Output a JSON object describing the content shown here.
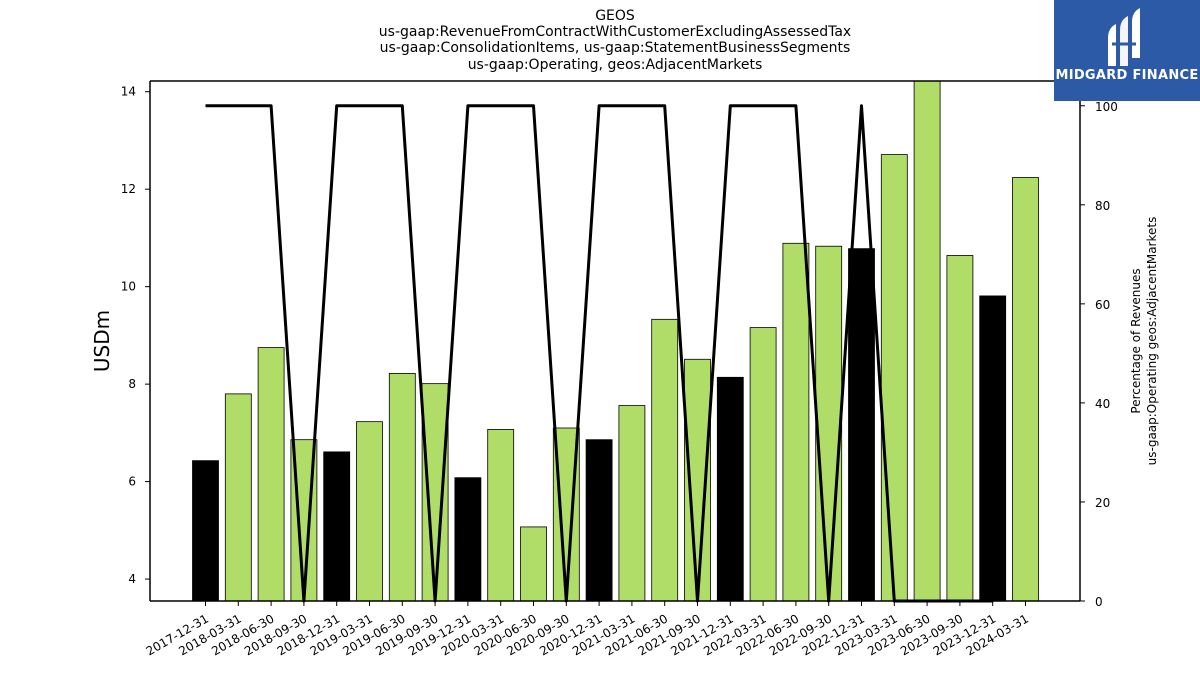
{
  "chart_data": {
    "type": "bar",
    "title_lines": [
      "GEOS",
      "us-gaap:RevenueFromContractWithCustomerExcludingAssessedTax",
      "us-gaap:ConsolidationItems, us-gaap:StatementBusinessSegments",
      "us-gaap:Operating, geos:AdjacentMarkets"
    ],
    "ylabel": "USDm",
    "ylabel_right_lines": [
      "Percentage of Revenues",
      "us-gaap:Operating geos:AdjacentMarkets"
    ],
    "ylim": [
      3.55,
      14.22
    ],
    "y_ticks": [
      4,
      6,
      8,
      10,
      12,
      14
    ],
    "ylim_right": [
      0,
      105
    ],
    "y_ticks_right": [
      0,
      20,
      40,
      60,
      80,
      100
    ],
    "categories": [
      "2017-12-31",
      "2018-03-31",
      "2018-06-30",
      "2018-09-30",
      "2018-12-31",
      "2019-03-31",
      "2019-06-30",
      "2019-09-30",
      "2019-12-31",
      "2020-03-31",
      "2020-06-30",
      "2020-09-30",
      "2020-12-31",
      "2021-03-31",
      "2021-06-30",
      "2021-09-30",
      "2021-12-31",
      "2022-03-31",
      "2022-06-30",
      "2022-09-30",
      "2022-12-31",
      "2023-03-31",
      "2023-06-30",
      "2023-09-30",
      "2023-12-31",
      "2024-03-31"
    ],
    "series": [
      {
        "values": [
          6.43,
          7.8,
          8.75,
          6.86,
          6.61,
          7.23,
          8.22,
          8.01,
          6.08,
          7.07,
          5.07,
          7.1,
          6.86,
          7.56,
          9.33,
          8.51,
          8.14,
          9.16,
          10.89,
          10.83,
          10.78,
          12.71,
          14.25,
          10.64,
          9.81,
          12.24
        ],
        "colors": [
          "#000000",
          "#b0dc68",
          "#b0dc68",
          "#b0dc68",
          "#000000",
          "#b0dc68",
          "#b0dc68",
          "#b0dc68",
          "#000000",
          "#b0dc68",
          "#b0dc68",
          "#b0dc68",
          "#000000",
          "#b0dc68",
          "#b0dc68",
          "#b0dc68",
          "#000000",
          "#b0dc68",
          "#b0dc68",
          "#b0dc68",
          "#000000",
          "#b0dc68",
          "#b0dc68",
          "#b0dc68",
          "#000000",
          "#b0dc68"
        ]
      },
      {
        "axis": "right",
        "type": "line",
        "values": [
          100,
          100,
          100,
          0,
          100,
          100,
          100,
          0,
          100,
          100,
          100,
          0,
          100,
          100,
          100,
          0,
          100,
          100,
          100,
          0,
          100,
          0,
          0,
          0,
          0,
          null
        ]
      }
    ],
    "bar_edge_color": "#000000",
    "line_color": "#000000"
  },
  "logo": {
    "text": "MIDGARD FINANCE",
    "bg_color": "#2d5aa6"
  }
}
